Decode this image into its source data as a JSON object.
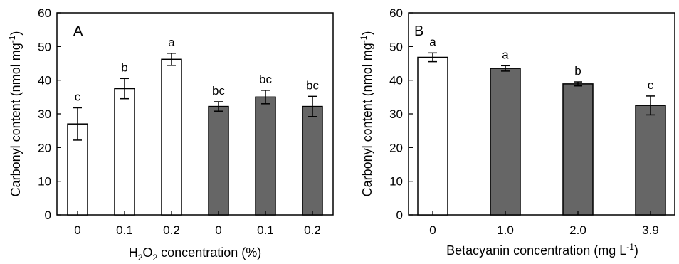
{
  "chart_data": [
    {
      "type": "bar",
      "panel_label": "A",
      "categories": [
        "0",
        "0.1",
        "0.2",
        "0",
        "0.1",
        "0.2"
      ],
      "values": [
        27.0,
        37.5,
        46.2,
        32.2,
        35.0,
        32.2
      ],
      "errors": [
        4.8,
        3.0,
        1.8,
        1.4,
        2.0,
        3.0
      ],
      "significance": [
        "c",
        "b",
        "a",
        "bc",
        "bc",
        "bc"
      ],
      "fill_colors": [
        "#ffffff",
        "#ffffff",
        "#ffffff",
        "#666666",
        "#666666",
        "#666666"
      ],
      "xlabel": {
        "pre": "H",
        "sub1": "2",
        "mid": "O",
        "sub2": "2",
        "post": " concentration (%)"
      },
      "ylabel": {
        "pre": "Carbonyl content (nmol mg",
        "sup": "-1",
        "post": ")"
      },
      "ylim": [
        0,
        60
      ],
      "yticks": [
        "0",
        "10",
        "20",
        "30",
        "40",
        "50",
        "60"
      ],
      "grid": false
    },
    {
      "type": "bar",
      "panel_label": "B",
      "categories": [
        "0",
        "1.0",
        "2.0",
        "3.9"
      ],
      "values": [
        46.8,
        43.5,
        38.9,
        32.5
      ],
      "errors": [
        1.3,
        0.8,
        0.6,
        2.8
      ],
      "significance": [
        "a",
        "a",
        "b",
        "c"
      ],
      "fill_colors": [
        "#ffffff",
        "#666666",
        "#666666",
        "#666666"
      ],
      "xlabel": {
        "pre": "Betacyanin concentration (mg L",
        "sup": "-1",
        "post": ")"
      },
      "ylabel": {
        "pre": "Carbonyl content (nmol mg",
        "sup": "-1",
        "post": ")"
      },
      "ylim": [
        0,
        60
      ],
      "yticks": [
        "0",
        "10",
        "20",
        "30",
        "40",
        "50",
        "60"
      ],
      "grid": false
    }
  ]
}
